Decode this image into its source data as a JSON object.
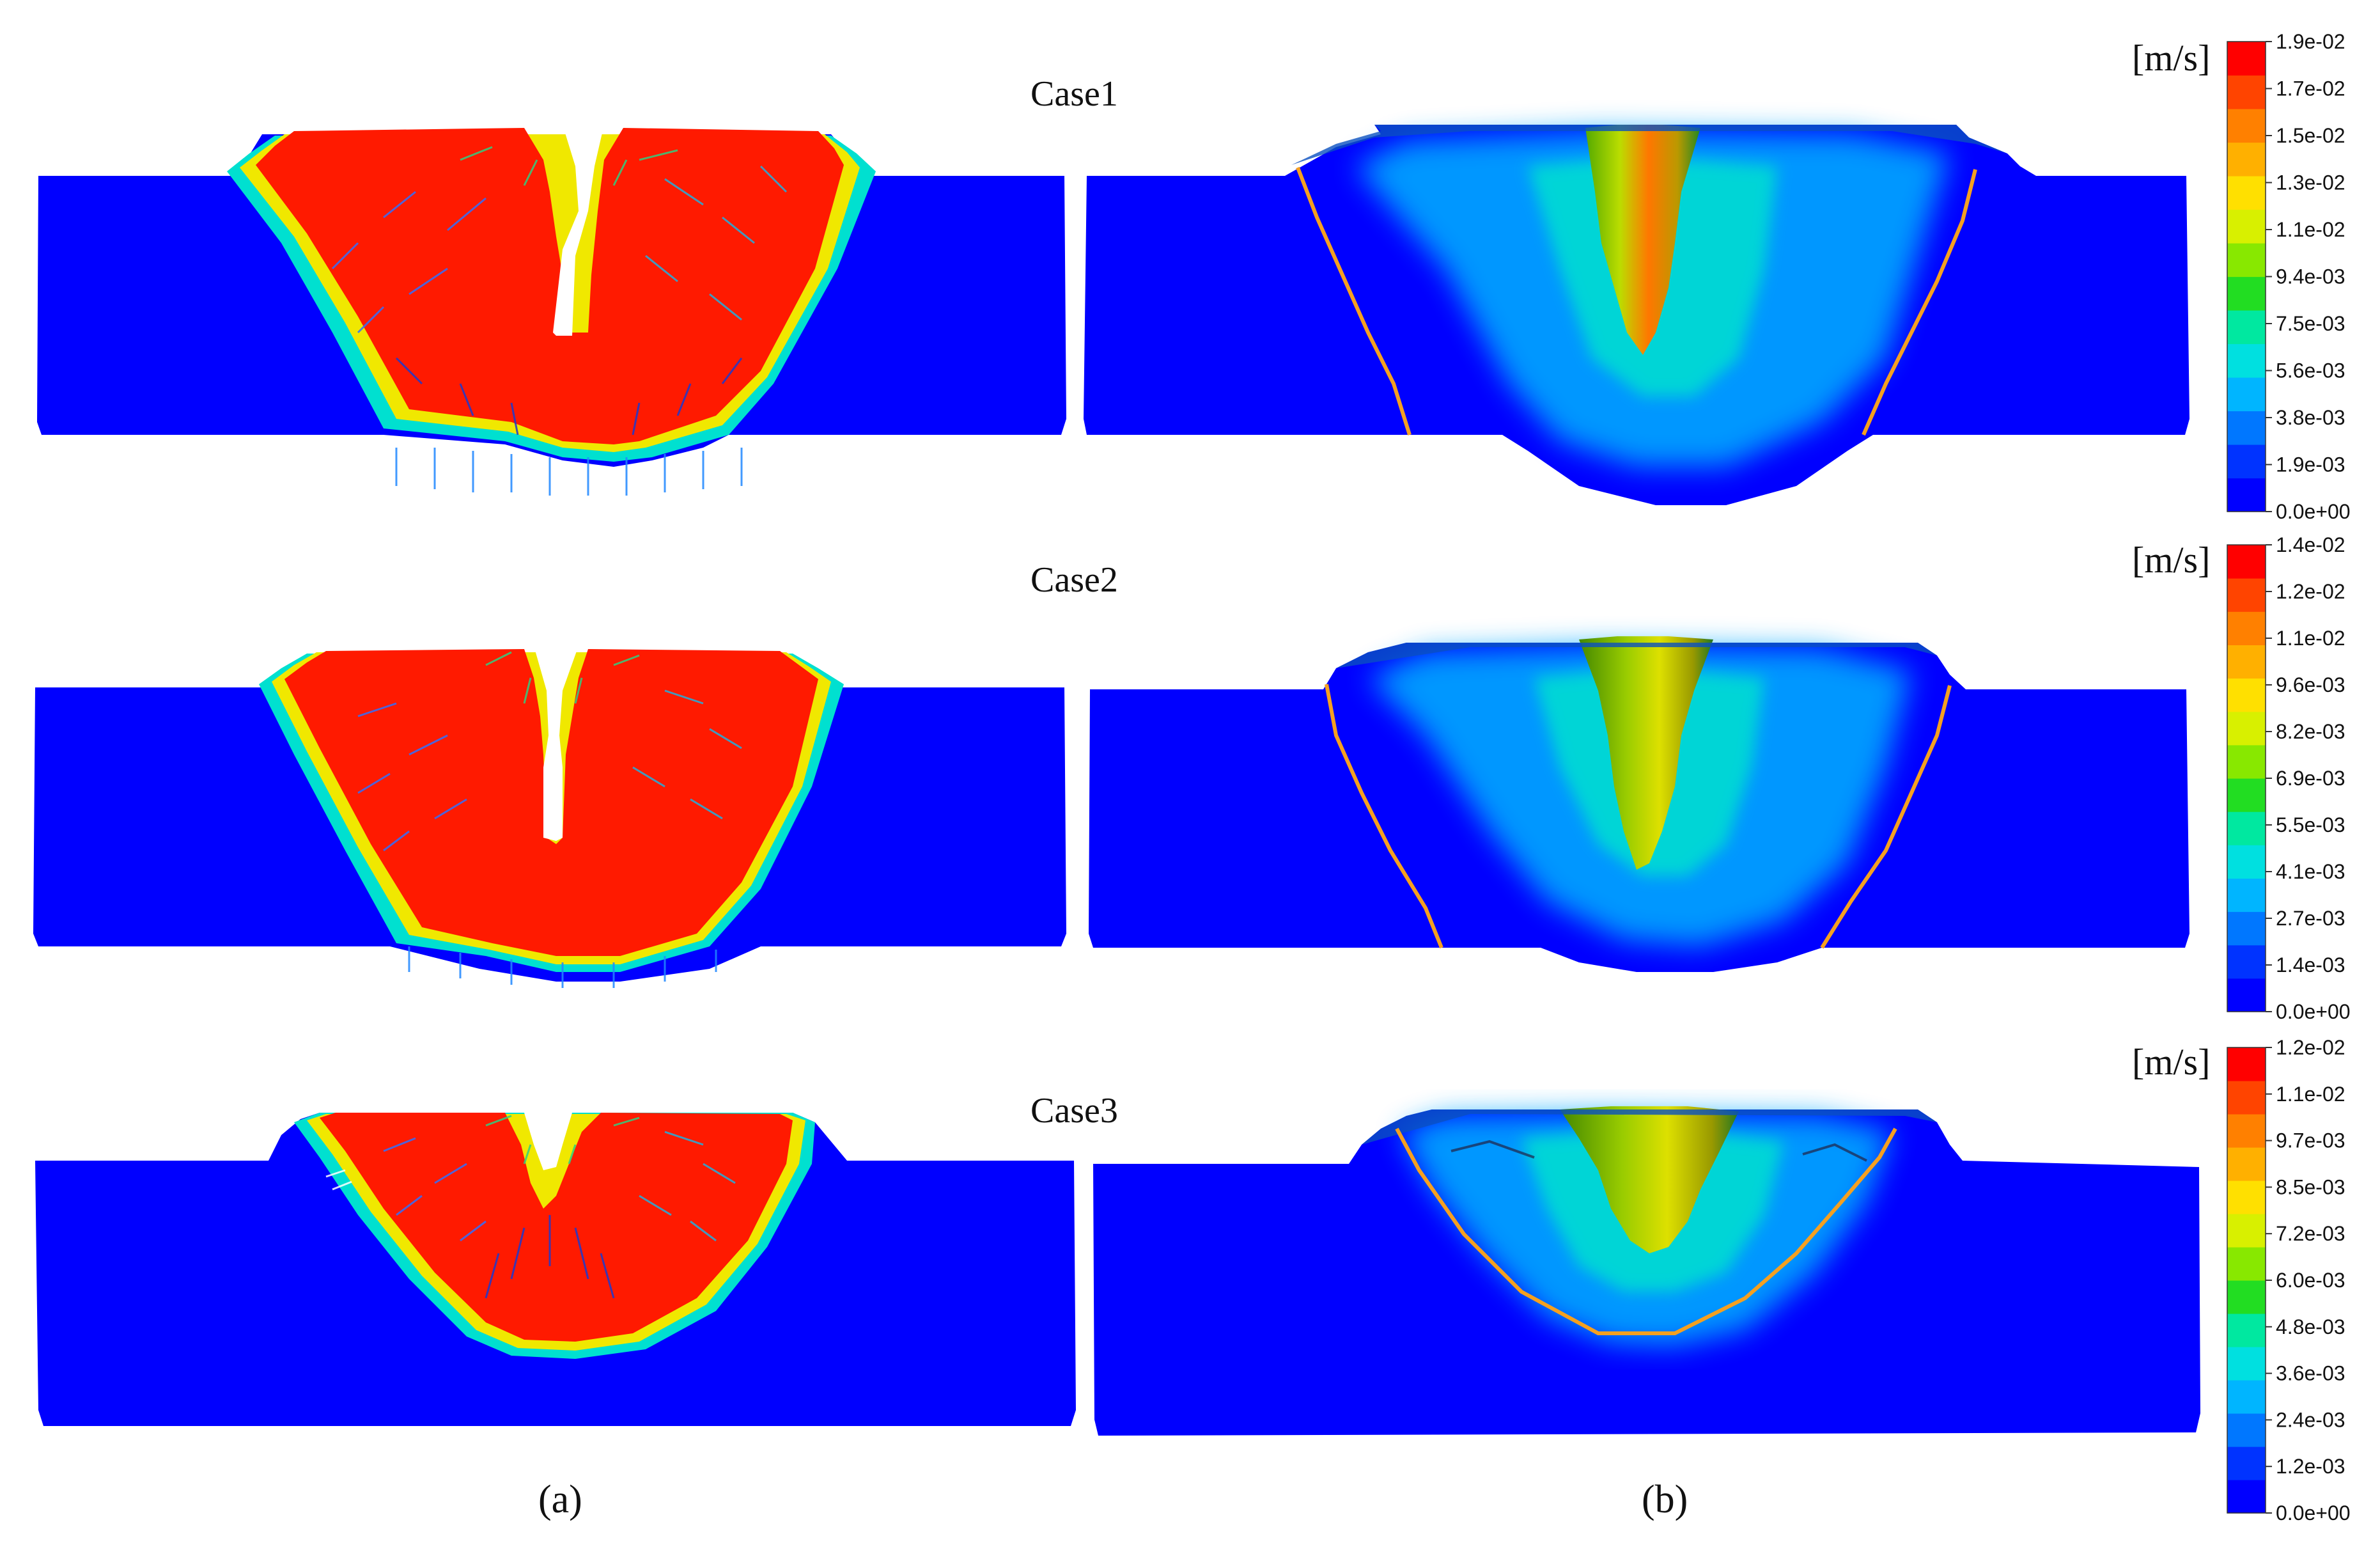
{
  "panels": {
    "a": "(a)",
    "b": "(b)"
  },
  "cases": [
    {
      "label": "Case1",
      "unit": "[m/s]",
      "ticks": [
        "1.9e-02",
        "1.7e-02",
        "1.5e-02",
        "1.3e-02",
        "1.1e-02",
        "9.4e-03",
        "7.5e-03",
        "5.6e-03",
        "3.8e-03",
        "1.9e-03",
        "0.0e+00"
      ]
    },
    {
      "label": "Case2",
      "unit": "[m/s]",
      "ticks": [
        "1.4e-02",
        "1.2e-02",
        "1.1e-02",
        "9.6e-03",
        "8.2e-03",
        "6.9e-03",
        "5.5e-03",
        "4.1e-03",
        "2.7e-03",
        "1.4e-03",
        "0.0e+00"
      ]
    },
    {
      "label": "Case3",
      "unit": "[m/s]",
      "ticks": [
        "1.2e-02",
        "1.1e-02",
        "9.7e-03",
        "8.5e-03",
        "7.2e-03",
        "6.0e-03",
        "4.8e-03",
        "3.6e-03",
        "2.4e-03",
        "1.2e-03",
        "0.0e+00"
      ]
    }
  ],
  "colormap": [
    "#0000ff",
    "#0033ff",
    "#0077ff",
    "#00b5ff",
    "#00e0e0",
    "#00e8a0",
    "#22dd22",
    "#88e800",
    "#d8f000",
    "#ffe000",
    "#ffb000",
    "#ff8000",
    "#ff4400",
    "#ff0000"
  ],
  "colors": {
    "substrate": "#0000ff",
    "pool": "#ff1a00",
    "fusion_line": "#f5a020"
  }
}
